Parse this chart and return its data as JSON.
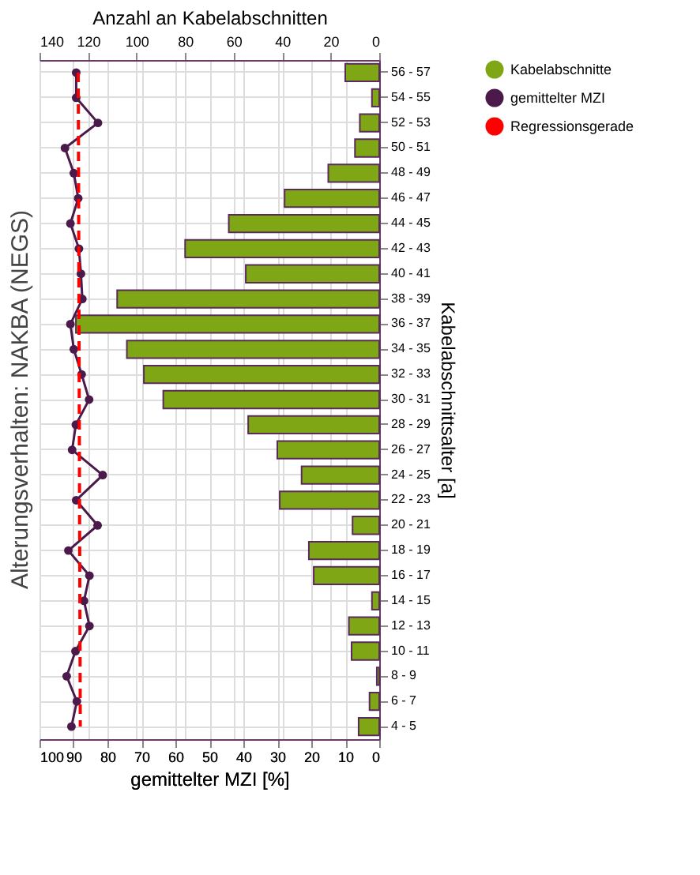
{
  "chart_data": {
    "type": "bar",
    "orientation": "horizontal",
    "title": "Alterungsverhalten: NAKBA (NEGS)",
    "x2label": "Anzahl an Kabelabschnitten",
    "xlabel": "gemittelter MZI [%]",
    "ylabel": "Kabelabschnittsalter [a]",
    "categories": [
      "56 - 57",
      "54 - 55",
      "52 - 53",
      "50 - 51",
      "48 - 49",
      "46 - 47",
      "44 - 45",
      "42 - 43",
      "40 - 41",
      "38 - 39",
      "36 - 37",
      "34 - 35",
      "32 - 33",
      "30 - 31",
      "28 - 29",
      "26 - 27",
      "24 - 25",
      "22 - 23",
      "20 - 21",
      "18 - 19",
      "16 - 17",
      "14 - 15",
      "12 - 13",
      "10 - 11",
      "8 - 9",
      "6 - 7",
      "4 - 5"
    ],
    "series": [
      {
        "name": "Kabelabschnitte",
        "type": "bar",
        "axis": "x2",
        "color": "#7fa614",
        "values": [
          14,
          3,
          8,
          10,
          21,
          39,
          62,
          80,
          55,
          108,
          125,
          104,
          97,
          89,
          54,
          42,
          32,
          41,
          11,
          29,
          27,
          3,
          12.5,
          11.4,
          1,
          4,
          8.5
        ]
      },
      {
        "name": "gemittelter MZI",
        "type": "line",
        "marker": "circle",
        "line_style": "solid",
        "color": "#4b1a4b",
        "values": [
          89.2,
          89.2,
          82.8,
          92.5,
          89.9,
          88.6,
          90.9,
          88.4,
          87.8,
          87.4,
          90.9,
          89.9,
          87.6,
          85.4,
          89.3,
          90.4,
          81.4,
          89.2,
          82.9,
          91.5,
          85.3,
          86.9,
          85.3,
          89.4,
          92,
          89,
          90.6
        ]
      },
      {
        "name": "Regressionsgerade",
        "type": "line",
        "marker": "none",
        "line_style": "dashed",
        "color": "#ff0000",
        "x": [
          "56 - 57",
          "4 - 5"
        ],
        "values": [
          88.6,
          88.0
        ]
      }
    ],
    "x2lim": [
      140,
      0
    ],
    "x2ticks": [
      140,
      120,
      100,
      80,
      60,
      40,
      20,
      0
    ],
    "xlim": [
      100,
      0
    ],
    "xticks": [
      100,
      90,
      80,
      70,
      60,
      50,
      40,
      30,
      20,
      10,
      0
    ],
    "grid": true,
    "legend": "right"
  }
}
